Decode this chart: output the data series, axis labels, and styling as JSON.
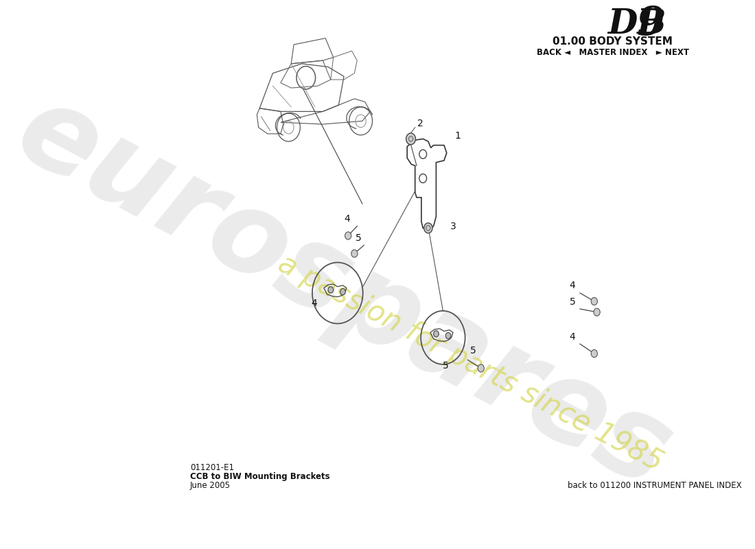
{
  "title_db9": "DB 9",
  "title_system": "01.00 BODY SYSTEM",
  "nav_text": "BACK ◄   MASTER INDEX   ► NEXT",
  "doc_number": "011201-E1",
  "doc_title": "CCB to BIW Mounting Brackets",
  "doc_date": "June 2005",
  "footer_right": "back to 011200 INSTRUMENT PANEL INDEX",
  "watermark_top": "eurospares",
  "watermark_bottom": "a passion for parts since 1985",
  "bg_color": "#ffffff"
}
